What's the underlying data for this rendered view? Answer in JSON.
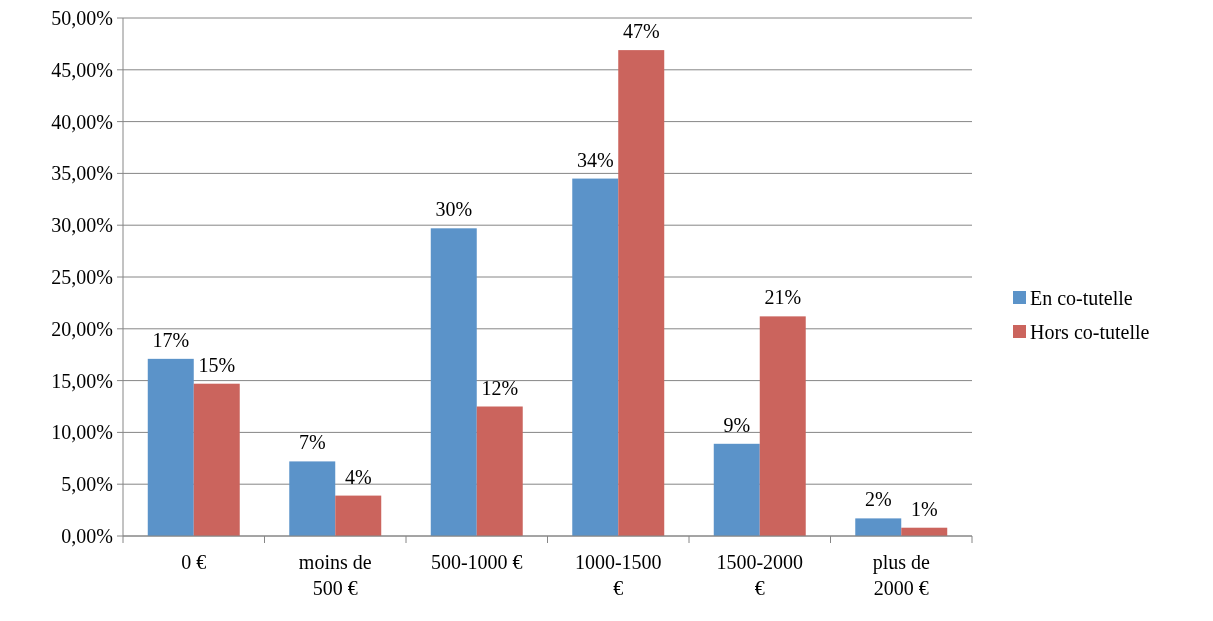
{
  "chart_data": {
    "type": "bar",
    "categories": [
      "0 €",
      "moins de 500 €",
      "500-1000 €",
      "1000-1500 €",
      "1500-2000 €",
      "plus de 2000 €"
    ],
    "series": [
      {
        "name": "En co-tutelle",
        "color": "#5b93c9",
        "values": [
          17.1,
          7.2,
          29.7,
          34.5,
          8.9,
          1.7
        ],
        "value_labels": [
          "17%",
          "7%",
          "30%",
          "34%",
          "9%",
          "2%"
        ]
      },
      {
        "name": "Hors co-tutelle",
        "color": "#cb645d",
        "values": [
          14.7,
          3.9,
          12.5,
          46.9,
          21.2,
          0.8
        ],
        "value_labels": [
          "15%",
          "4%",
          "12%",
          "47%",
          "21%",
          "1%"
        ]
      }
    ],
    "ylim": [
      0,
      50
    ],
    "yticks": [
      {
        "value": 0,
        "label": "0,00%"
      },
      {
        "value": 5,
        "label": "5,00%"
      },
      {
        "value": 10,
        "label": "10,00%"
      },
      {
        "value": 15,
        "label": "15,00%"
      },
      {
        "value": 20,
        "label": "20,00%"
      },
      {
        "value": 25,
        "label": "25,00%"
      },
      {
        "value": 30,
        "label": "30,00%"
      },
      {
        "value": 35,
        "label": "35,00%"
      },
      {
        "value": 40,
        "label": "40,00%"
      },
      {
        "value": 45,
        "label": "45,00%"
      },
      {
        "value": 50,
        "label": "50,00%"
      }
    ],
    "grid": "y",
    "legend": "right"
  }
}
